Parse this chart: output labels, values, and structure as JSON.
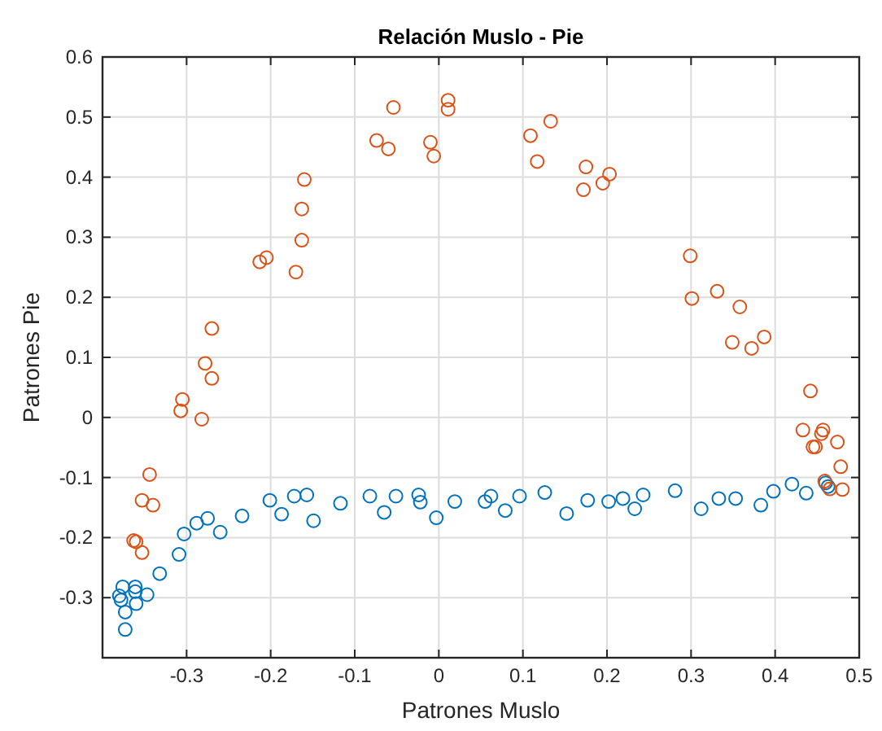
{
  "chart_data": {
    "type": "scatter",
    "title": "Relación Muslo - Pie",
    "xlabel": "Patrones Muslo",
    "ylabel": "Patrones Pie",
    "xlim": [
      -0.4,
      0.5
    ],
    "ylim": [
      -0.4,
      0.6
    ],
    "xticks": [
      {
        "value": -0.4,
        "label": null
      },
      -0.3,
      -0.2,
      -0.1,
      0,
      0.1,
      0.2,
      0.3,
      0.4,
      0.5
    ],
    "yticks": [
      {
        "value": -0.4,
        "label": null
      },
      -0.3,
      -0.2,
      -0.1,
      0,
      0.1,
      0.2,
      0.3,
      0.4,
      0.5,
      0.6
    ],
    "grid": true,
    "marker": "circle",
    "series": [
      {
        "color": "#0072bd",
        "x": [
          -0.376,
          -0.361,
          -0.38,
          -0.361,
          -0.347,
          -0.378,
          -0.36,
          -0.373,
          -0.373,
          -0.332,
          -0.309,
          -0.303,
          -0.288,
          -0.275,
          -0.26,
          -0.234,
          -0.201,
          -0.187,
          -0.172,
          -0.157,
          -0.149,
          -0.117,
          -0.082,
          -0.065,
          -0.051,
          -0.024,
          -0.022,
          -0.003,
          0.019,
          0.055,
          0.062,
          0.079,
          0.096,
          0.126,
          0.152,
          0.177,
          0.202,
          0.219,
          0.233,
          0.243,
          0.281,
          0.312,
          0.333,
          0.353,
          0.383,
          0.398,
          0.42,
          0.437,
          0.46,
          0.463
        ],
        "values": [
          -0.282,
          -0.282,
          -0.297,
          -0.29,
          -0.295,
          -0.304,
          -0.31,
          -0.324,
          -0.353,
          -0.26,
          -0.228,
          -0.194,
          -0.176,
          -0.168,
          -0.191,
          -0.164,
          -0.138,
          -0.161,
          -0.131,
          -0.129,
          -0.172,
          -0.143,
          -0.131,
          -0.158,
          -0.131,
          -0.129,
          -0.141,
          -0.167,
          -0.14,
          -0.14,
          -0.131,
          -0.155,
          -0.131,
          -0.125,
          -0.16,
          -0.138,
          -0.14,
          -0.135,
          -0.152,
          -0.129,
          -0.122,
          -0.152,
          -0.135,
          -0.135,
          -0.146,
          -0.123,
          -0.111,
          -0.126,
          -0.109,
          -0.115
        ]
      },
      {
        "color": "#d95319",
        "x": [
          -0.054,
          0.011,
          0.011,
          -0.074,
          -0.06,
          -0.01,
          -0.006,
          -0.16,
          -0.163,
          -0.163,
          -0.213,
          -0.205,
          -0.17,
          -0.27,
          -0.278,
          -0.27,
          -0.305,
          -0.307,
          -0.282,
          -0.344,
          -0.353,
          -0.34,
          -0.363,
          -0.36,
          -0.353,
          0.133,
          0.109,
          0.117,
          0.175,
          0.203,
          0.195,
          0.172,
          0.299,
          0.301,
          0.331,
          0.358,
          0.349,
          0.372,
          0.387,
          0.442,
          0.433,
          0.457,
          0.455,
          0.445,
          0.448,
          0.474,
          0.478,
          0.459,
          0.465,
          0.48
        ],
        "values": [
          0.516,
          0.528,
          0.513,
          0.461,
          0.447,
          0.458,
          0.435,
          0.396,
          0.347,
          0.295,
          0.259,
          0.266,
          0.242,
          0.148,
          0.09,
          0.065,
          0.03,
          0.011,
          -0.003,
          -0.095,
          -0.138,
          -0.146,
          -0.205,
          -0.207,
          -0.225,
          0.493,
          0.469,
          0.426,
          0.417,
          0.405,
          0.39,
          0.379,
          0.269,
          0.198,
          0.21,
          0.184,
          0.125,
          0.115,
          0.134,
          0.044,
          -0.021,
          -0.021,
          -0.027,
          -0.049,
          -0.049,
          -0.041,
          -0.082,
          -0.106,
          -0.119,
          -0.12
        ]
      }
    ]
  }
}
